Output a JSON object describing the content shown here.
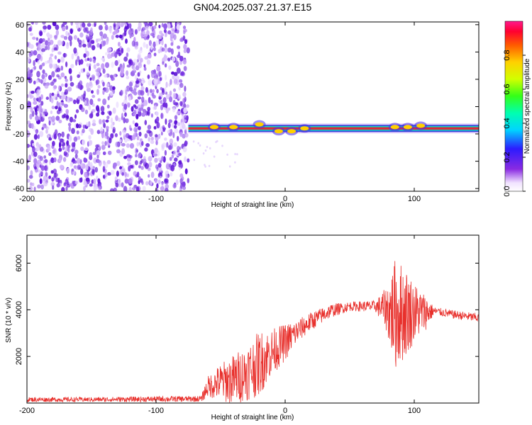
{
  "title": "GN04.2025.037.21.37.E15",
  "colors": {
    "snr_line": "#e8302c",
    "speckle": "#7a2ee6",
    "band_fill_a": "#16d3c8",
    "band_fill_b": "#23a33a",
    "band_core": "#e0263a",
    "band_edge": "#2b3cd8"
  },
  "chart_data": [
    {
      "type": "heatmap",
      "title": "",
      "xlabel": "Height of straight line (km)",
      "ylabel": "Frequency (Hz)",
      "xlim": [
        -200,
        150
      ],
      "ylim": [
        -62,
        62
      ],
      "x_ticks": [
        -200,
        -100,
        0,
        100
      ],
      "x_tick_labels": [
        "-200",
        "-100",
        "0",
        "100"
      ],
      "y_ticks": [
        -60,
        -40,
        -20,
        0,
        20,
        40,
        60
      ],
      "y_tick_labels": [
        "-60",
        "-40",
        "-20",
        "0",
        "20",
        "40",
        "60"
      ],
      "noise_region_x": [
        -200,
        -75
      ],
      "band": {
        "x_start": -75,
        "x_end": 150,
        "freq_center": -16,
        "freq_halfwidth": 2.5,
        "disturbances": [
          {
            "x": -55,
            "freq": -15
          },
          {
            "x": -40,
            "freq": -15
          },
          {
            "x": -20,
            "freq": -13
          },
          {
            "x": -5,
            "freq": -18
          },
          {
            "x": 5,
            "freq": -18
          },
          {
            "x": 15,
            "freq": -16
          },
          {
            "x": 85,
            "freq": -15
          },
          {
            "x": 95,
            "freq": -15
          },
          {
            "x": 105,
            "freq": -14
          }
        ]
      },
      "colorbar": {
        "label": "Normalized spectral amplitude",
        "range": [
          0,
          1
        ],
        "ticks": [
          0.0,
          0.2,
          0.4,
          0.6,
          0.8
        ],
        "tick_labels": [
          "0.0",
          "0.2",
          "0.4",
          "0.6",
          "0.8"
        ]
      },
      "grid": false,
      "legend": "none"
    },
    {
      "type": "line",
      "title": "",
      "xlabel": "Height of straight line (km)",
      "ylabel": "SNR (10 * v/v)",
      "xlim": [
        -200,
        150
      ],
      "ylim": [
        0,
        7200
      ],
      "x_ticks": [
        -200,
        -100,
        0,
        100
      ],
      "x_tick_labels": [
        "-200",
        "-100",
        "0",
        "100"
      ],
      "y_ticks": [
        2000,
        4000,
        6000
      ],
      "y_tick_labels": [
        "2000",
        "4000",
        "6000"
      ],
      "series": [
        {
          "name": "",
          "color": "#e8302c",
          "envelope": [
            {
              "x": -200,
              "mean": 150,
              "amp": 100
            },
            {
              "x": -150,
              "mean": 150,
              "amp": 100
            },
            {
              "x": -100,
              "mean": 170,
              "amp": 120
            },
            {
              "x": -65,
              "mean": 180,
              "amp": 130
            },
            {
              "x": -60,
              "mean": 700,
              "amp": 450
            },
            {
              "x": -50,
              "mean": 900,
              "amp": 800
            },
            {
              "x": -40,
              "mean": 1000,
              "amp": 1100
            },
            {
              "x": -30,
              "mean": 1300,
              "amp": 1200
            },
            {
              "x": -20,
              "mean": 1700,
              "amp": 1400
            },
            {
              "x": -10,
              "mean": 2200,
              "amp": 1000
            },
            {
              "x": 0,
              "mean": 2600,
              "amp": 800
            },
            {
              "x": 10,
              "mean": 3100,
              "amp": 500
            },
            {
              "x": 20,
              "mean": 3500,
              "amp": 400
            },
            {
              "x": 35,
              "mean": 3950,
              "amp": 300
            },
            {
              "x": 50,
              "mean": 4150,
              "amp": 200
            },
            {
              "x": 70,
              "mean": 4150,
              "amp": 250
            },
            {
              "x": 78,
              "mean": 4050,
              "amp": 900
            },
            {
              "x": 85,
              "mean": 3800,
              "amp": 2400
            },
            {
              "x": 92,
              "mean": 3900,
              "amp": 2100
            },
            {
              "x": 100,
              "mean": 3900,
              "amp": 1300
            },
            {
              "x": 110,
              "mean": 3900,
              "amp": 700
            },
            {
              "x": 115,
              "mean": 3950,
              "amp": 180
            },
            {
              "x": 130,
              "mean": 3800,
              "amp": 180
            },
            {
              "x": 150,
              "mean": 3650,
              "amp": 200
            }
          ]
        }
      ],
      "grid": false,
      "legend": "none"
    }
  ]
}
